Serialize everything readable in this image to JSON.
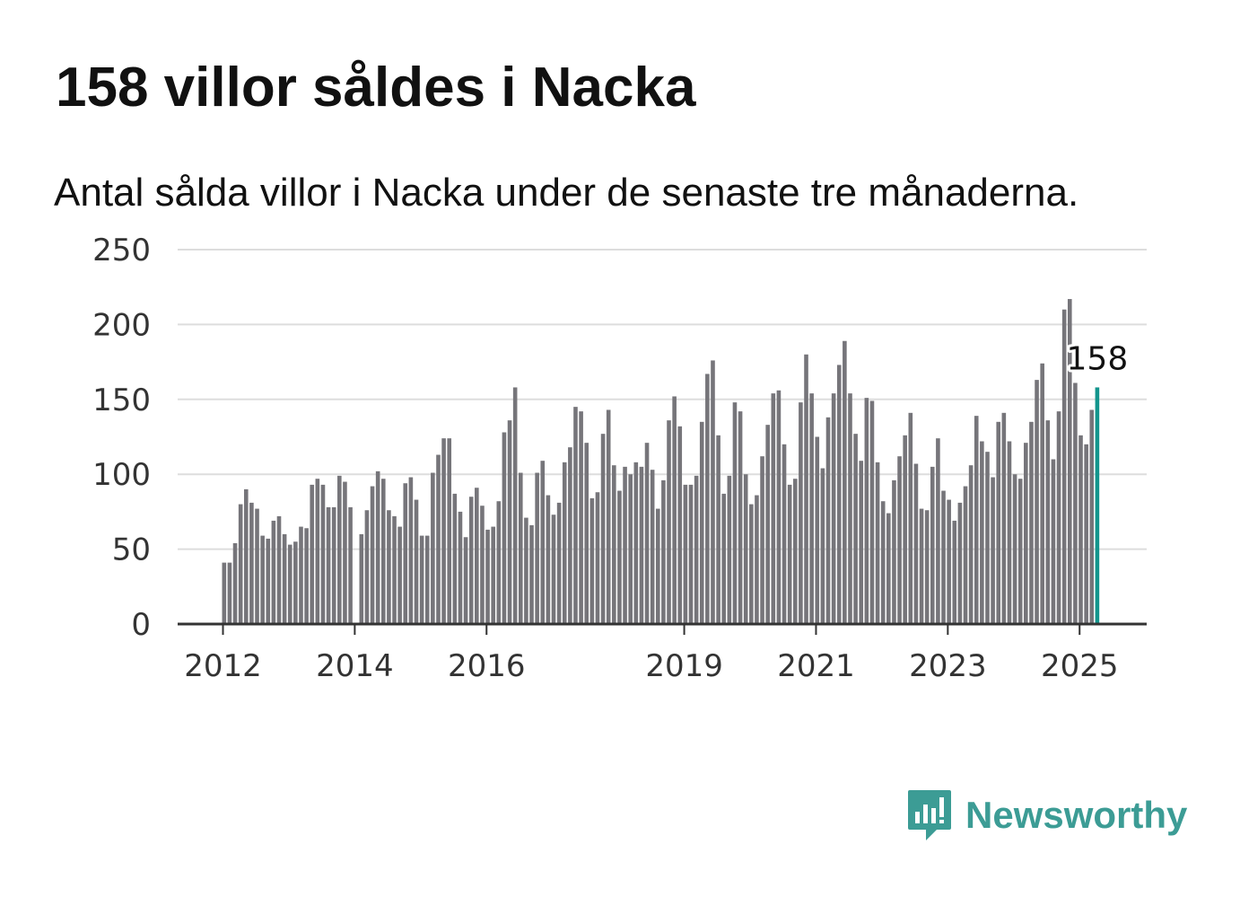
{
  "header": {
    "title": "158 villor såldes i Nacka",
    "subtitle": "Antal sålda villor i Nacka under de senaste tre månaderna."
  },
  "brand": {
    "name": "Newsworthy",
    "color": "#3c9c95",
    "icon": "newsworthy-logo-icon"
  },
  "colors": {
    "bar": "#76757a",
    "highlight": "#13958d",
    "grid": "#dddddd",
    "axis": "#333333"
  },
  "chart_data": {
    "type": "bar",
    "title": "158 villor såldes i Nacka",
    "subtitle": "Antal sålda villor i Nacka under de senaste tre månaderna.",
    "xlabel": "",
    "ylabel": "",
    "ylim": [
      0,
      250
    ],
    "yticks": [
      0,
      50,
      100,
      150,
      200,
      250
    ],
    "xtick_labels": [
      "2012",
      "2014",
      "2016",
      "2019",
      "2021",
      "2023",
      "2025"
    ],
    "grid": true,
    "legend": "none",
    "highlight_label": "158",
    "series": [
      {
        "values": [
          41,
          41,
          54,
          80,
          90,
          81,
          77,
          59,
          57,
          69,
          72,
          60,
          53,
          55,
          65,
          64,
          93,
          97,
          93,
          78,
          78,
          99,
          95,
          78,
          null,
          60,
          76,
          92,
          102,
          97,
          76,
          72,
          65,
          94,
          98,
          83,
          59,
          59,
          101,
          113,
          124,
          124,
          87,
          75,
          58,
          85,
          91,
          79,
          63,
          65,
          82,
          128,
          136,
          158,
          101,
          71,
          66,
          101,
          109,
          86,
          73,
          81,
          108,
          118,
          145,
          142,
          121,
          84,
          88,
          127,
          143,
          106,
          89,
          105,
          100,
          108,
          105,
          121,
          103,
          77,
          96,
          136,
          152,
          132,
          93,
          93,
          99,
          135,
          167,
          176,
          126,
          87,
          99,
          148,
          142,
          100,
          80,
          86,
          112,
          133,
          154,
          156,
          120,
          93,
          97,
          148,
          180,
          154,
          125,
          104,
          138,
          154,
          173,
          189,
          154,
          127,
          109,
          151,
          149,
          108,
          82,
          74,
          96,
          112,
          126,
          141,
          107,
          77,
          76,
          105,
          124,
          89,
          83,
          69,
          81,
          92,
          106,
          139,
          122,
          115,
          98,
          135,
          141,
          122,
          100,
          97,
          121,
          135,
          163,
          174,
          136,
          110,
          142,
          210,
          217,
          161,
          126,
          120,
          143,
          158
        ]
      }
    ]
  }
}
